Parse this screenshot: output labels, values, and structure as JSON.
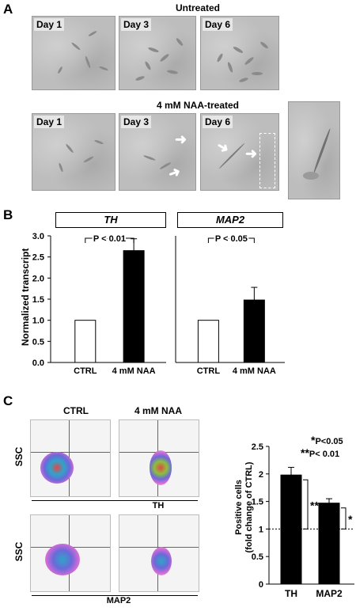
{
  "panelA": {
    "letter": "A",
    "untreated_title": "Untreated",
    "treated_title": "4 mM NAA-treated",
    "untreated_days": [
      "Day 1",
      "Day 3",
      "Day 6"
    ],
    "treated_days": [
      "Day 1",
      "Day 3",
      "Day 6"
    ]
  },
  "panelB": {
    "letter": "B",
    "ylabel": "Normalized transcript",
    "yticks": [
      "3.0",
      "2.5",
      "2.0",
      "1.5",
      "1.0",
      "0.5",
      "0.0"
    ],
    "charts": [
      {
        "gene": "TH",
        "pvalue": "P < 0.01"
      },
      {
        "gene": "MAP2",
        "pvalue": "P < 0.05"
      }
    ]
  },
  "panelC": {
    "letter": "C",
    "col_labels": [
      "CTRL",
      "4 mM NAA"
    ],
    "ssc_label": "SSC",
    "row_labels": [
      "TH",
      "MAP2"
    ],
    "ylabel_line1": "Positive cells",
    "ylabel_line2": "(fold change of CTRL)",
    "yticks": [
      "2.5",
      "2",
      "1.5",
      "1",
      "0.5",
      "0"
    ],
    "legend1": "P<0.05",
    "legend2": "P< 0.01",
    "star1": "*",
    "star2": "**"
  },
  "chart_data": [
    {
      "type": "bar",
      "title": "TH",
      "categories": [
        "CTRL",
        "4 mM NAA"
      ],
      "values": [
        1.0,
        2.65
      ],
      "errors": [
        0,
        0.28
      ],
      "ylabel": "Normalized transcript",
      "ylim": [
        0,
        3.0
      ],
      "annotation": "P < 0.01",
      "colors": [
        "#ffffff",
        "#000000"
      ]
    },
    {
      "type": "bar",
      "title": "MAP2",
      "categories": [
        "CTRL",
        "4 mM NAA"
      ],
      "values": [
        1.0,
        1.48
      ],
      "errors": [
        0,
        0.3
      ],
      "ylim": [
        0,
        3.0
      ],
      "annotation": "P < 0.05",
      "colors": [
        "#ffffff",
        "#000000"
      ]
    },
    {
      "type": "bar",
      "categories": [
        "TH",
        "MAP2"
      ],
      "values": [
        1.98,
        1.47
      ],
      "errors": [
        0.14,
        0.08
      ],
      "ylabel": "Positive cells (fold change of CTRL)",
      "ylim": [
        0,
        2.5
      ],
      "reference_line": 1,
      "annotations": [
        "**",
        "*"
      ],
      "colors": [
        "#000000",
        "#000000"
      ]
    }
  ]
}
